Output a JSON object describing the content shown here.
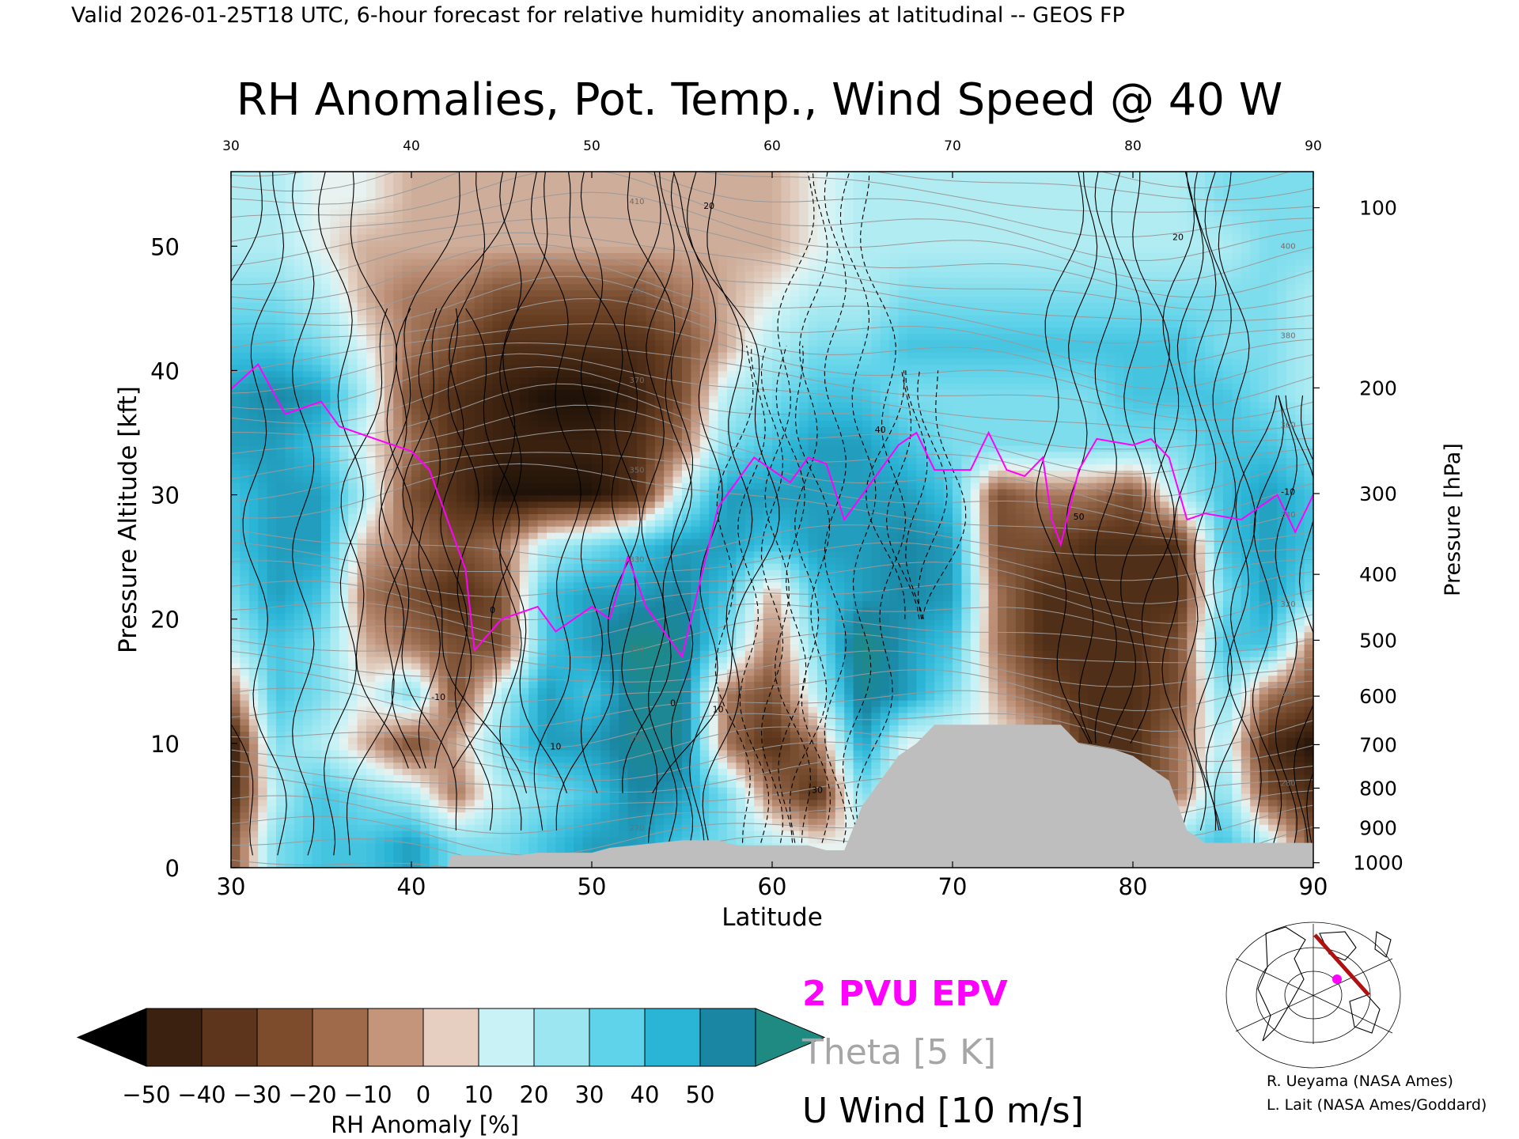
{
  "header": {
    "valid_line": "Valid 2026-01-25T18 UTC, 6-hour forecast for relative humidity anomalies at latitudinal -- GEOS FP",
    "title": "RH Anomalies, Pot. Temp., Wind Speed @ 40 W"
  },
  "chart_data": {
    "type": "heatmap",
    "title": "RH Anomalies, Pot. Temp., Wind Speed @ 40 W",
    "xlabel": "Latitude",
    "ylabel": "Pressure Altitude [kft]",
    "y2label": "Pressure [hPa]",
    "xlim": [
      30,
      90
    ],
    "ylim": [
      0,
      56
    ],
    "x_ticks": [
      "30",
      "40",
      "50",
      "60",
      "70",
      "80",
      "90"
    ],
    "x_top_ticks": [
      "30",
      "40",
      "50",
      "60",
      "70",
      "80",
      "90"
    ],
    "y_ticks": [
      "0",
      "10",
      "20",
      "30",
      "40",
      "50"
    ],
    "pressure_ticks": [
      {
        "label": "100",
        "alt_kft": 53.1
      },
      {
        "label": "200",
        "alt_kft": 38.6
      },
      {
        "label": "300",
        "alt_kft": 30.1
      },
      {
        "label": "400",
        "alt_kft": 23.6
      },
      {
        "label": "500",
        "alt_kft": 18.3
      },
      {
        "label": "600",
        "alt_kft": 13.8
      },
      {
        "label": "700",
        "alt_kft": 9.9
      },
      {
        "label": "800",
        "alt_kft": 6.4
      },
      {
        "label": "900",
        "alt_kft": 3.2
      },
      {
        "label": "1000",
        "alt_kft": 0.4
      }
    ],
    "rh_anomaly_grid": {
      "lats": [
        30,
        32.5,
        35,
        37.5,
        40,
        42.5,
        45,
        47.5,
        50,
        52.5,
        55,
        57.5,
        60,
        62.5,
        65,
        67.5,
        70,
        72.5,
        75,
        77.5,
        80,
        82.5,
        85,
        87.5,
        90
      ],
      "alts_kft": [
        2,
        6,
        10,
        14,
        18,
        22,
        26,
        30,
        34,
        38,
        42,
        46,
        50,
        54
      ],
      "values_pct": [
        [
          -30,
          20,
          30,
          30,
          40,
          20,
          20,
          30,
          40,
          40,
          30,
          20,
          10,
          0,
          0,
          0,
          0,
          0,
          0,
          -20,
          -30,
          20,
          30,
          10,
          -30
        ],
        [
          -45,
          10,
          30,
          20,
          10,
          -20,
          10,
          20,
          30,
          45,
          40,
          20,
          -20,
          -40,
          20,
          0,
          0,
          0,
          0,
          -30,
          -40,
          -20,
          20,
          -30,
          -40
        ],
        [
          -50,
          20,
          10,
          -10,
          -30,
          -10,
          20,
          40,
          40,
          50,
          50,
          -20,
          -40,
          -20,
          40,
          0,
          0,
          0,
          -10,
          -40,
          -40,
          -20,
          10,
          -40,
          -50
        ],
        [
          -20,
          30,
          20,
          0,
          20,
          -30,
          10,
          40,
          30,
          50,
          50,
          -20,
          -30,
          10,
          50,
          40,
          20,
          -10,
          -30,
          -40,
          -40,
          -30,
          20,
          -20,
          -30
        ],
        [
          10,
          30,
          20,
          -10,
          -20,
          -30,
          -30,
          30,
          40,
          55,
          50,
          20,
          -20,
          20,
          55,
          40,
          30,
          -20,
          -40,
          -40,
          -40,
          -30,
          30,
          30,
          -20
        ],
        [
          20,
          40,
          30,
          -20,
          -30,
          -40,
          -30,
          30,
          40,
          40,
          45,
          30,
          -10,
          30,
          40,
          45,
          40,
          -20,
          -40,
          -40,
          -40,
          -40,
          20,
          40,
          20
        ],
        [
          30,
          40,
          40,
          -10,
          -20,
          -30,
          -20,
          10,
          20,
          30,
          40,
          40,
          30,
          40,
          40,
          45,
          40,
          -30,
          -30,
          -40,
          -40,
          -40,
          30,
          40,
          30
        ],
        [
          30,
          40,
          40,
          10,
          -30,
          -40,
          -50,
          -50,
          -50,
          -40,
          10,
          40,
          40,
          40,
          40,
          40,
          30,
          -30,
          -20,
          -20,
          -30,
          10,
          30,
          40,
          30
        ],
        [
          40,
          40,
          30,
          0,
          -20,
          -40,
          -45,
          -45,
          -45,
          -40,
          -20,
          20,
          30,
          40,
          40,
          30,
          20,
          20,
          20,
          20,
          20,
          20,
          30,
          30,
          20
        ],
        [
          40,
          45,
          40,
          10,
          -30,
          -40,
          -45,
          -50,
          -50,
          -45,
          -30,
          10,
          20,
          30,
          30,
          20,
          20,
          20,
          20,
          20,
          30,
          30,
          30,
          20,
          10
        ],
        [
          30,
          30,
          20,
          0,
          -20,
          -30,
          -40,
          -40,
          -40,
          -40,
          -30,
          -10,
          10,
          20,
          20,
          30,
          30,
          30,
          30,
          30,
          30,
          30,
          20,
          20,
          10
        ],
        [
          20,
          20,
          10,
          -10,
          -20,
          -20,
          -30,
          -30,
          -30,
          -30,
          -20,
          -10,
          0,
          10,
          10,
          20,
          20,
          20,
          20,
          20,
          20,
          20,
          20,
          20,
          10
        ],
        [
          10,
          10,
          0,
          -10,
          -10,
          -10,
          -10,
          -10,
          -10,
          -10,
          -10,
          -10,
          -10,
          0,
          10,
          10,
          10,
          10,
          10,
          10,
          10,
          10,
          10,
          20,
          20
        ],
        [
          10,
          10,
          0,
          0,
          -10,
          -10,
          -10,
          -10,
          -10,
          -10,
          -10,
          -10,
          -10,
          0,
          10,
          10,
          10,
          10,
          10,
          10,
          10,
          10,
          20,
          20,
          20
        ]
      ]
    },
    "epv_2pvu_line": [
      [
        30,
        38.5
      ],
      [
        31.5,
        40.5
      ],
      [
        33,
        36.5
      ],
      [
        35,
        37.5
      ],
      [
        36,
        35.5
      ],
      [
        38,
        34.5
      ],
      [
        40,
        33.5
      ],
      [
        41,
        32
      ],
      [
        42,
        28
      ],
      [
        43,
        24
      ],
      [
        43.5,
        17.5
      ],
      [
        45,
        20
      ],
      [
        47,
        21
      ],
      [
        48,
        19
      ],
      [
        50,
        21
      ],
      [
        51,
        20
      ],
      [
        52,
        25
      ],
      [
        53,
        21
      ],
      [
        54,
        19
      ],
      [
        55,
        17
      ],
      [
        56,
        23
      ],
      [
        57,
        29
      ],
      [
        58,
        31
      ],
      [
        59,
        33
      ],
      [
        60,
        32
      ],
      [
        61,
        31
      ],
      [
        62,
        33
      ],
      [
        63,
        32.5
      ],
      [
        64,
        28
      ],
      [
        65,
        30
      ],
      [
        66,
        32
      ],
      [
        67,
        34
      ],
      [
        68,
        35
      ],
      [
        69,
        32
      ],
      [
        70,
        32
      ],
      [
        71,
        32
      ],
      [
        72,
        35
      ],
      [
        73,
        32
      ],
      [
        74,
        31.5
      ],
      [
        75,
        33
      ],
      [
        75.5,
        28
      ],
      [
        76,
        26
      ],
      [
        77,
        32
      ],
      [
        78,
        34.5
      ],
      [
        80,
        34
      ],
      [
        81,
        34.5
      ],
      [
        82,
        33
      ],
      [
        83,
        28
      ],
      [
        84,
        28.5
      ],
      [
        86,
        28
      ],
      [
        87,
        29
      ],
      [
        88,
        30
      ],
      [
        89,
        27
      ],
      [
        90,
        30
      ]
    ],
    "theta_levels_K": [
      270,
      280,
      290,
      300,
      310,
      320,
      330,
      340,
      350,
      360,
      370,
      380,
      390,
      400,
      410
    ],
    "theta_labels": [
      "270",
      "280",
      "290",
      "300",
      "310",
      "320",
      "330",
      "340",
      "350",
      "360",
      "370",
      "380",
      "390",
      "400",
      "410"
    ],
    "u_wind_levels_ms": [
      -30,
      -20,
      -10,
      0,
      10,
      20,
      30,
      40,
      50
    ],
    "u_wind_labels": [
      "-10",
      "0",
      "10",
      "20",
      "30",
      "40",
      "50"
    ],
    "terrain_kft": [
      [
        30,
        0
      ],
      [
        42,
        0
      ],
      [
        42.2,
        1
      ],
      [
        46,
        1
      ],
      [
        47,
        1.2
      ],
      [
        50,
        1.2
      ],
      [
        51,
        1.6
      ],
      [
        55,
        2.2
      ],
      [
        57,
        2.2
      ],
      [
        58,
        1.8
      ],
      [
        62,
        1.8
      ],
      [
        63,
        1.4
      ],
      [
        64,
        1.4
      ],
      [
        65,
        5
      ],
      [
        66,
        7
      ],
      [
        67,
        9
      ],
      [
        68,
        10
      ],
      [
        69,
        11.5
      ],
      [
        76,
        11.5
      ],
      [
        77,
        10
      ],
      [
        79,
        9.5
      ],
      [
        80,
        9
      ],
      [
        81,
        8
      ],
      [
        82,
        7
      ],
      [
        83,
        3
      ],
      [
        84,
        2
      ],
      [
        90,
        2
      ]
    ],
    "colorbar": {
      "label": "RH Anomaly [%]",
      "tick_labels": [
        "-50",
        "-40",
        "-30",
        "-20",
        "-10",
        "0",
        "10",
        "20",
        "30",
        "40",
        "50"
      ],
      "colors": [
        "#3b210f",
        "#5c351c",
        "#7d4c2c",
        "#9e6a4a",
        "#c4957b",
        "#e6cfc1",
        "#c8f2f6",
        "#9be6f0",
        "#5fd3ea",
        "#2ab4d6",
        "#1a86a3"
      ],
      "under_color": "#000000",
      "over_color": "#1f8a82"
    },
    "legend": [
      {
        "label": "2 PVU EPV",
        "color": "#ff00ff"
      },
      {
        "label": "Theta [5 K]",
        "color": "#a6a6a6"
      },
      {
        "label": "U Wind [10 m/s]",
        "color": "#000000"
      }
    ]
  },
  "credits": {
    "line1": "R. Ueyama (NASA Ames)",
    "line2": "L. Lait (NASA Ames/Goddard)"
  },
  "map_inset": {
    "track_color": "#b01010",
    "marker_color": "#ff00ff"
  }
}
